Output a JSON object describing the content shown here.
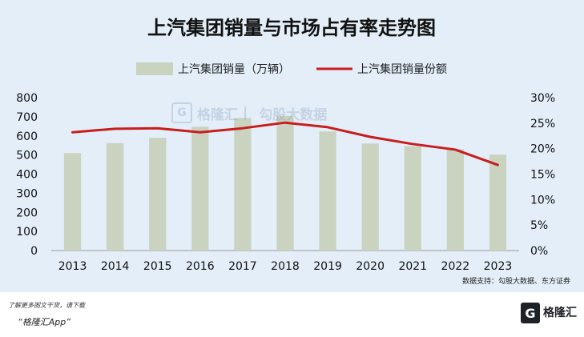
{
  "chart_data": {
    "type": "bar-line",
    "title": "上汽集团销量与市场占有率走势图",
    "categories": [
      "2013",
      "2014",
      "2015",
      "2016",
      "2017",
      "2018",
      "2019",
      "2020",
      "2021",
      "2022",
      "2023"
    ],
    "series": [
      {
        "name": "上汽集团销量（万辆）",
        "type": "bar",
        "axis": "left",
        "color": "#c9d3c0",
        "values": [
          510,
          562,
          590,
          648,
          693,
          705,
          623,
          560,
          546,
          530,
          502
        ]
      },
      {
        "name": "上汽集团销量份额",
        "type": "line",
        "axis": "right",
        "color": "#c81e1e",
        "values": [
          23.2,
          23.9,
          24.0,
          23.2,
          24.0,
          25.1,
          24.2,
          22.3,
          20.9,
          19.8,
          16.8
        ]
      }
    ],
    "y_left": {
      "min": 0,
      "max": 800,
      "ticks": [
        "0",
        "100",
        "200",
        "300",
        "400",
        "500",
        "600",
        "700",
        "800"
      ]
    },
    "y_right": {
      "min": 0,
      "max": 30,
      "ticks": [
        "0%",
        "5%",
        "10%",
        "15%",
        "20%",
        "25%",
        "30%"
      ]
    },
    "source": "数据支持：勾股大数据、东方证券"
  },
  "watermark": {
    "logo_letter": "G",
    "brand": "格隆汇",
    "divider": "|",
    "data_brand": "勾股大数据"
  },
  "footer": {
    "note": "了解更多图文干货，请下载",
    "app": "“格隆汇App”",
    "logo_letter": "G",
    "logo_text": "格隆汇"
  }
}
